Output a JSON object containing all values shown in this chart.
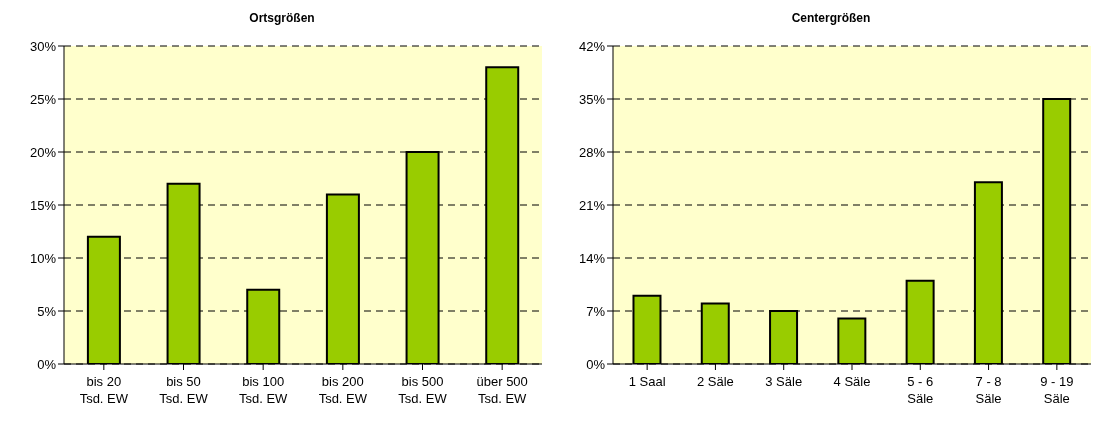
{
  "chart_data": [
    {
      "type": "bar",
      "title": "Ortsgrößen",
      "categories": [
        "bis 20 Tsd. EW",
        "bis 50 Tsd. EW",
        "bis 100 Tsd. EW",
        "bis 200 Tsd. EW",
        "bis 500 Tsd. EW",
        "über 500 Tsd. EW"
      ],
      "values": [
        12,
        17,
        7,
        16,
        20,
        28
      ],
      "color": "#99cc00",
      "ylim": [
        0,
        30
      ],
      "yticks": [
        {
          "value": 0,
          "label": "0%"
        },
        {
          "value": 5,
          "label": "5%"
        },
        {
          "value": 10,
          "label": "10%"
        },
        {
          "value": 15,
          "label": "15%"
        },
        {
          "value": 20,
          "label": "20%"
        },
        {
          "value": 25,
          "label": "25%"
        },
        {
          "value": 30,
          "label": "30%"
        }
      ],
      "grid": "y",
      "legend": false
    },
    {
      "type": "bar",
      "title": "Centergrößen",
      "categories": [
        "1 Saal",
        "2 Säle",
        "3 Säle",
        "4 Säle",
        "5 - 6 Säle",
        "7 - 8 Säle",
        "9 - 19 Säle"
      ],
      "values": [
        9,
        8,
        7,
        6,
        11,
        24,
        35
      ],
      "color": "#99cc00",
      "ylim": [
        0,
        42
      ],
      "yticks": [
        {
          "value": 0,
          "label": "0%"
        },
        {
          "value": 7,
          "label": "7%"
        },
        {
          "value": 14,
          "label": "14%"
        },
        {
          "value": 21,
          "label": "21%"
        },
        {
          "value": 28,
          "label": "28%"
        },
        {
          "value": 35,
          "label": "35%"
        },
        {
          "value": 42,
          "label": "42%"
        }
      ],
      "grid": "y",
      "legend": false
    }
  ]
}
